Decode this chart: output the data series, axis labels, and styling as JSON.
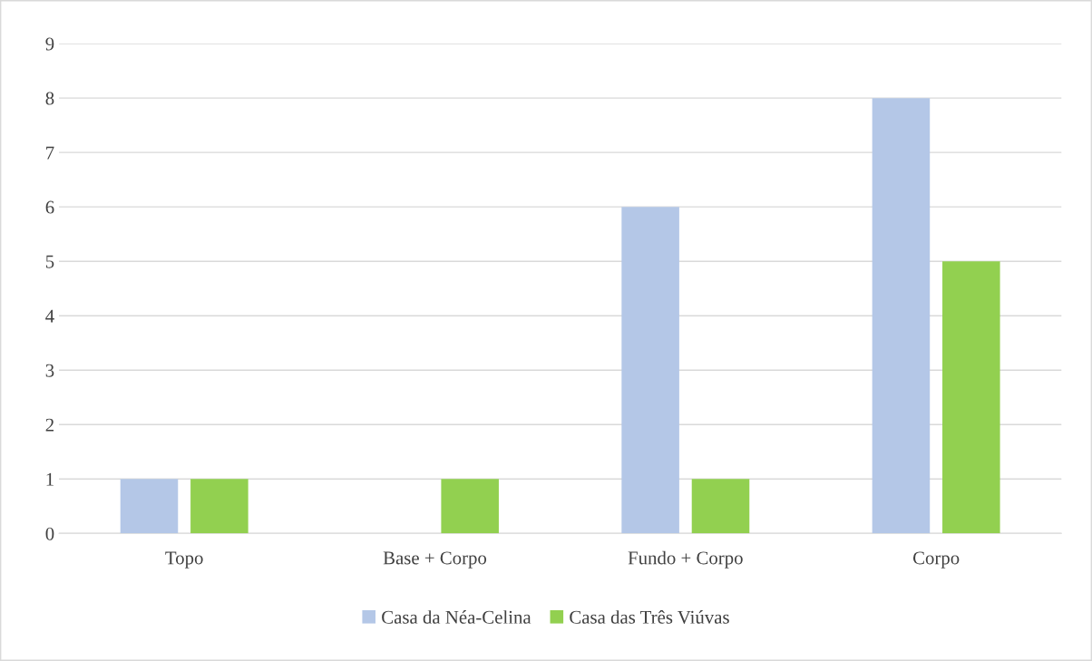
{
  "chart_data": {
    "type": "bar",
    "categories": [
      "Topo",
      "Base + Corpo",
      "Fundo + Corpo",
      "Corpo"
    ],
    "series": [
      {
        "name": "Casa da Néa-Celina",
        "color": "#b4c7e7",
        "values": [
          1,
          0,
          6,
          8
        ]
      },
      {
        "name": "Casa das Três Viúvas",
        "color": "#92d050",
        "values": [
          1,
          1,
          1,
          5
        ]
      }
    ],
    "ylim": [
      0,
      9
    ],
    "yticks": [
      0,
      1,
      2,
      3,
      4,
      5,
      6,
      7,
      8,
      9
    ],
    "grid": "y",
    "legend": "bottom"
  }
}
